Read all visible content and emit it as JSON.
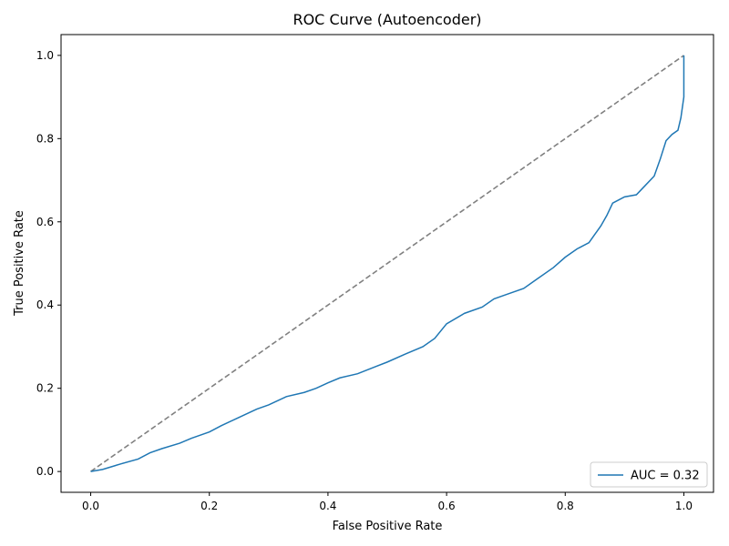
{
  "chart_data": {
    "type": "line",
    "title": "ROC Curve (Autoencoder)",
    "xlabel": "False Positive Rate",
    "ylabel": "True Positive Rate",
    "xlim": [
      -0.05,
      1.05
    ],
    "ylim": [
      -0.05,
      1.05
    ],
    "x_ticks": [
      "0.0",
      "0.2",
      "0.4",
      "0.6",
      "0.8",
      "1.0"
    ],
    "y_ticks": [
      "0.0",
      "0.2",
      "0.4",
      "0.6",
      "0.8",
      "1.0"
    ],
    "grid": false,
    "legend": {
      "placement": "lower-right"
    },
    "colors": {
      "roc": "#1f77b4",
      "diagonal": "#808080"
    },
    "series": [
      {
        "name": "AUC = 0.32",
        "style": "solid",
        "x": [
          0.0,
          0.02,
          0.05,
          0.08,
          0.1,
          0.12,
          0.15,
          0.17,
          0.2,
          0.22,
          0.25,
          0.28,
          0.3,
          0.33,
          0.36,
          0.38,
          0.4,
          0.42,
          0.45,
          0.48,
          0.5,
          0.53,
          0.56,
          0.58,
          0.6,
          0.63,
          0.66,
          0.68,
          0.7,
          0.73,
          0.75,
          0.78,
          0.8,
          0.82,
          0.84,
          0.85,
          0.86,
          0.87,
          0.88,
          0.9,
          0.92,
          0.93,
          0.95,
          0.96,
          0.97,
          0.98,
          0.99,
          0.995,
          1.0,
          1.0
        ],
        "y": [
          0.0,
          0.005,
          0.018,
          0.03,
          0.045,
          0.055,
          0.068,
          0.08,
          0.095,
          0.11,
          0.13,
          0.15,
          0.16,
          0.18,
          0.19,
          0.2,
          0.213,
          0.225,
          0.235,
          0.252,
          0.263,
          0.282,
          0.3,
          0.32,
          0.355,
          0.38,
          0.395,
          0.415,
          0.425,
          0.44,
          0.46,
          0.49,
          0.515,
          0.535,
          0.55,
          0.57,
          0.59,
          0.615,
          0.645,
          0.66,
          0.665,
          0.68,
          0.71,
          0.75,
          0.795,
          0.81,
          0.82,
          0.85,
          0.9,
          1.0
        ]
      },
      {
        "name": "",
        "style": "dashed",
        "x": [
          0.0,
          1.0
        ],
        "y": [
          0.0,
          1.0
        ]
      }
    ]
  }
}
